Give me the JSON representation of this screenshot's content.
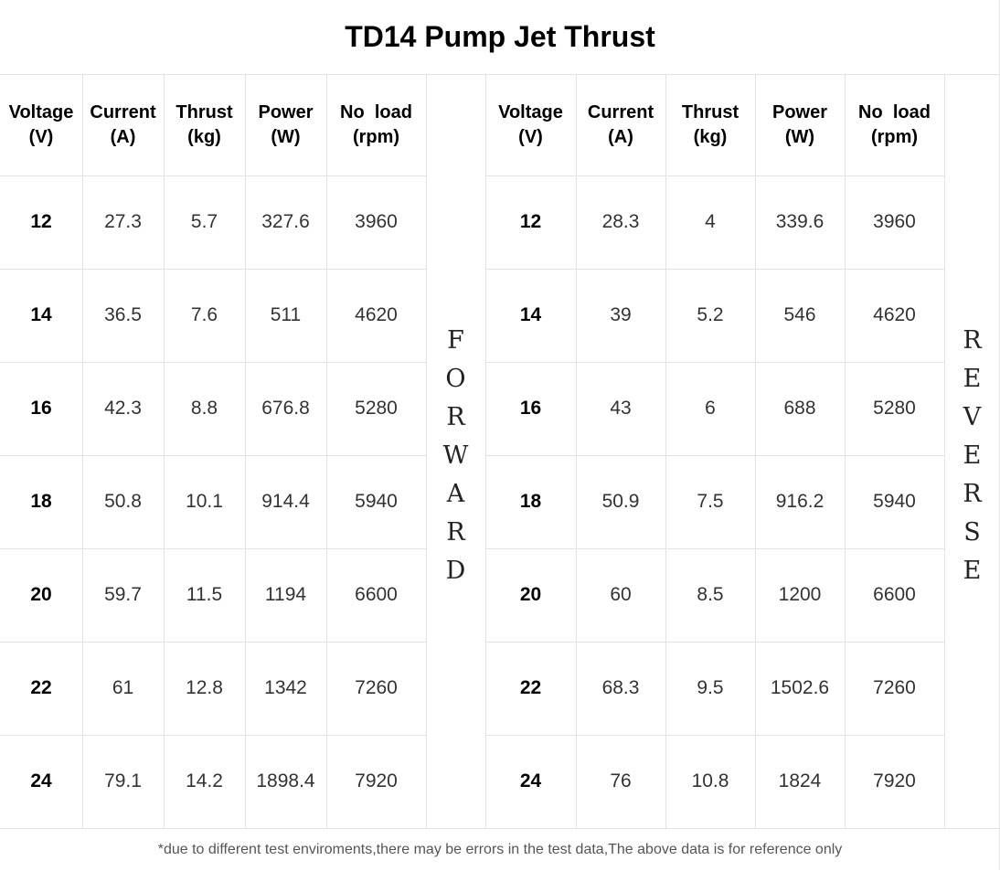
{
  "title": "TD14 Pump Jet Thrust",
  "headers": {
    "forward": [
      [
        "Voltage",
        "(V)"
      ],
      [
        "Current",
        "(A)"
      ],
      [
        "Thrust",
        "(kg)"
      ],
      [
        "Power",
        "(W)"
      ],
      [
        "No  load",
        "(rpm)"
      ]
    ],
    "reverse": [
      [
        "Voltage",
        "(V)"
      ],
      [
        "Current",
        "(A)"
      ],
      [
        "Thrust",
        "(kg)"
      ],
      [
        "Power",
        "(W)"
      ],
      [
        "No  load",
        "(rpm)"
      ]
    ]
  },
  "forward_label": [
    "F",
    "O",
    "R",
    "W",
    "A",
    "R",
    "D"
  ],
  "reverse_label": [
    "R",
    "E",
    "V",
    "E",
    "R",
    "S",
    "E"
  ],
  "forward_rows": [
    [
      "12",
      "27.3",
      "5.7",
      "327.6",
      "3960"
    ],
    [
      "14",
      "36.5",
      "7.6",
      "511",
      "4620"
    ],
    [
      "16",
      "42.3",
      "8.8",
      "676.8",
      "5280"
    ],
    [
      "18",
      "50.8",
      "10.1",
      "914.4",
      "5940"
    ],
    [
      "20",
      "59.7",
      "11.5",
      "1194",
      "6600"
    ],
    [
      "22",
      "61",
      "12.8",
      "1342",
      "7260"
    ],
    [
      "24",
      "79.1",
      "14.2",
      "1898.4",
      "7920"
    ]
  ],
  "reverse_rows": [
    [
      "12",
      "28.3",
      "4",
      "339.6",
      "3960"
    ],
    [
      "14",
      "39",
      "5.2",
      "546",
      "4620"
    ],
    [
      "16",
      "43",
      "6",
      "688",
      "5280"
    ],
    [
      "18",
      "50.9",
      "7.5",
      "916.2",
      "5940"
    ],
    [
      "20",
      "60",
      "8.5",
      "1200",
      "6600"
    ],
    [
      "22",
      "68.3",
      "9.5",
      "1502.6",
      "7260"
    ],
    [
      "24",
      "76",
      "10.8",
      "1824",
      "7920"
    ]
  ],
  "footer": "*due to different test enviroments,there may be errors in the test data,The above data is for reference only"
}
